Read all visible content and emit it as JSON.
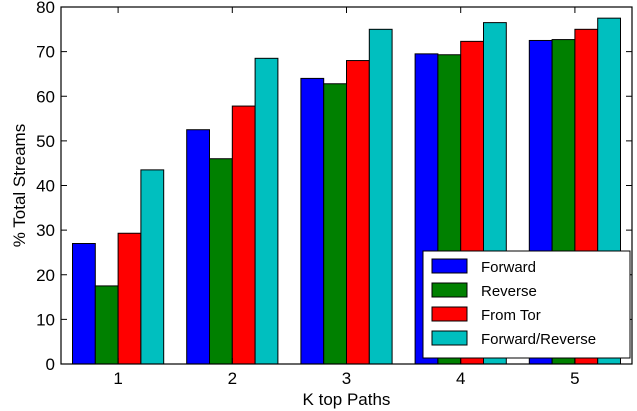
{
  "chart_data": {
    "type": "bar",
    "title": "",
    "xlabel": "K top Paths",
    "ylabel": "% Total Streams",
    "categories": [
      "1",
      "2",
      "3",
      "4",
      "5"
    ],
    "ylim": [
      0,
      80
    ],
    "yticks": [
      0,
      10,
      20,
      30,
      40,
      50,
      60,
      70,
      80
    ],
    "grid": false,
    "legend_position": "bottom-right",
    "series": [
      {
        "name": "Forward",
        "color": "#0000ff",
        "values": [
          27.0,
          52.5,
          64.0,
          69.5,
          72.5
        ]
      },
      {
        "name": "Reverse",
        "color": "#008000",
        "values": [
          17.5,
          46.0,
          62.8,
          69.3,
          72.7
        ]
      },
      {
        "name": "From Tor",
        "color": "#ff0000",
        "values": [
          29.3,
          57.8,
          68.0,
          72.3,
          75.0
        ]
      },
      {
        "name": "Forward/Reverse",
        "color": "#00bfbf",
        "values": [
          43.5,
          68.5,
          75.0,
          76.5,
          77.5
        ]
      }
    ]
  }
}
